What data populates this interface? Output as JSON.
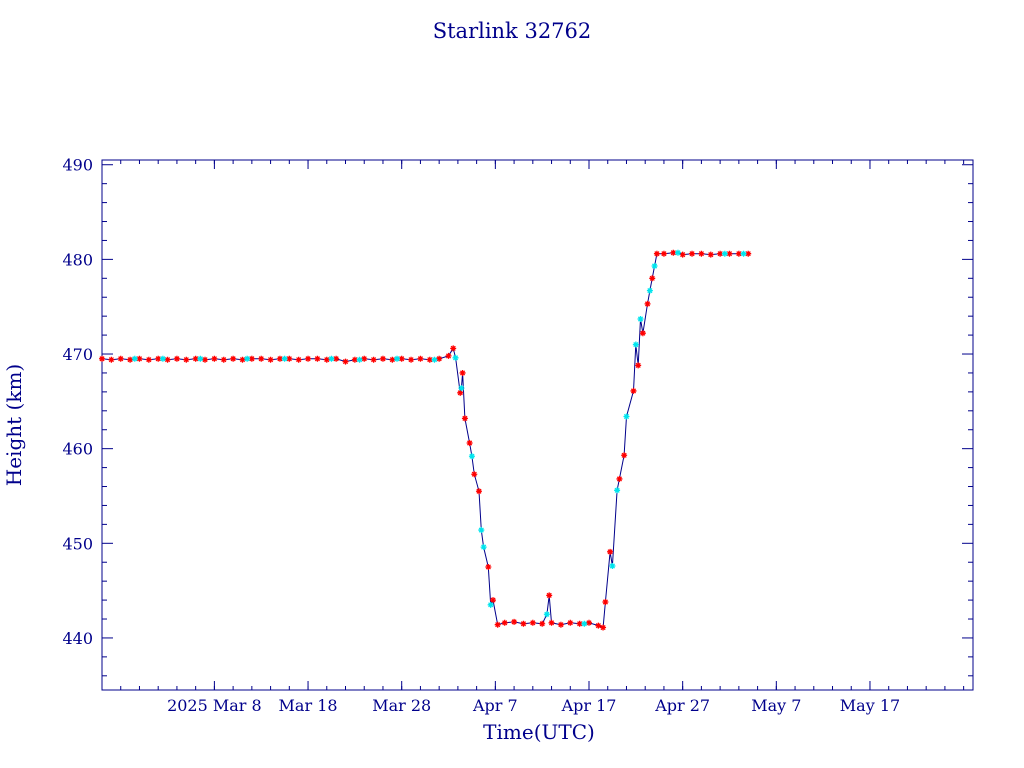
{
  "chart_data": {
    "type": "scatter",
    "title": "Starlink 32762",
    "xlabel": "Time(UTC)",
    "ylabel": "Height (km)",
    "xlim": [
      "2025-02-24",
      "2025-05-28"
    ],
    "ylim": [
      434.5,
      490.5
    ],
    "grid": false,
    "colors": {
      "axes": "#00008b",
      "line": "#00008b",
      "marker_primary": "#ff0000",
      "marker_secondary": "#00e5ee"
    },
    "x_ticks": [
      {
        "label": "2025 Mar  8",
        "date": "2025-03-08"
      },
      {
        "label": "Mar 18",
        "date": "2025-03-18"
      },
      {
        "label": "Mar 28",
        "date": "2025-03-28"
      },
      {
        "label": "Apr  7",
        "date": "2025-04-07"
      },
      {
        "label": "Apr 17",
        "date": "2025-04-17"
      },
      {
        "label": "Apr 27",
        "date": "2025-04-27"
      },
      {
        "label": "May  7",
        "date": "2025-05-07"
      },
      {
        "label": "May 17",
        "date": "2025-05-17"
      }
    ],
    "y_ticks": [
      440,
      450,
      460,
      470,
      480,
      490
    ],
    "series": [
      {
        "marker": "asterisk",
        "points": [
          [
            "2025-02-24T00:00",
            469.5
          ],
          [
            "2025-02-25T00:00",
            469.4
          ],
          [
            "2025-02-26T00:00",
            469.5
          ],
          [
            "2025-02-27T00:00",
            469.4
          ],
          [
            "2025-02-28T00:00",
            469.5
          ],
          [
            "2025-03-01T00:00",
            469.4
          ],
          [
            "2025-03-02T00:00",
            469.5
          ],
          [
            "2025-03-03T00:00",
            469.4
          ],
          [
            "2025-03-04T00:00",
            469.5
          ],
          [
            "2025-03-05T00:00",
            469.4
          ],
          [
            "2025-03-06T00:00",
            469.5
          ],
          [
            "2025-03-07T00:00",
            469.4
          ],
          [
            "2025-03-08T00:00",
            469.5
          ],
          [
            "2025-03-09T00:00",
            469.4
          ],
          [
            "2025-03-10T00:00",
            469.5
          ],
          [
            "2025-03-11T00:00",
            469.4
          ],
          [
            "2025-03-12T00:00",
            469.5
          ],
          [
            "2025-03-13T00:00",
            469.5
          ],
          [
            "2025-03-14T00:00",
            469.4
          ],
          [
            "2025-03-15T00:00",
            469.5
          ],
          [
            "2025-03-16T00:00",
            469.5
          ],
          [
            "2025-03-17T00:00",
            469.4
          ],
          [
            "2025-03-18T00:00",
            469.5
          ],
          [
            "2025-03-19T00:00",
            469.5
          ],
          [
            "2025-03-20T00:00",
            469.4
          ],
          [
            "2025-03-21T00:00",
            469.5
          ],
          [
            "2025-03-22T00:00",
            469.2
          ],
          [
            "2025-03-23T00:00",
            469.4
          ],
          [
            "2025-03-24T00:00",
            469.5
          ],
          [
            "2025-03-25T00:00",
            469.4
          ],
          [
            "2025-03-26T00:00",
            469.5
          ],
          [
            "2025-03-27T00:00",
            469.4
          ],
          [
            "2025-03-28T00:00",
            469.5
          ],
          [
            "2025-03-29T00:00",
            469.4
          ],
          [
            "2025-03-30T00:00",
            469.5
          ],
          [
            "2025-03-31T00:00",
            469.4
          ],
          [
            "2025-04-01T00:00",
            469.5
          ],
          [
            "2025-04-02T00:00",
            469.8
          ],
          [
            "2025-04-02T12:00",
            470.6
          ],
          [
            "2025-04-03T06:00",
            465.9
          ],
          [
            "2025-04-03T12:00",
            468.0
          ],
          [
            "2025-04-03T18:00",
            463.2
          ],
          [
            "2025-04-04T06:00",
            460.6
          ],
          [
            "2025-04-04T18:00",
            457.3
          ],
          [
            "2025-04-05T06:00",
            455.5
          ],
          [
            "2025-04-06T06:00",
            447.5
          ],
          [
            "2025-04-06T18:00",
            444.0
          ],
          [
            "2025-04-07T06:00",
            441.4
          ],
          [
            "2025-04-08T00:00",
            441.6
          ],
          [
            "2025-04-09T00:00",
            441.7
          ],
          [
            "2025-04-10T00:00",
            441.5
          ],
          [
            "2025-04-11T00:00",
            441.6
          ],
          [
            "2025-04-12T00:00",
            441.5
          ],
          [
            "2025-04-12T18:00",
            444.5
          ],
          [
            "2025-04-13T00:00",
            441.6
          ],
          [
            "2025-04-14T00:00",
            441.4
          ],
          [
            "2025-04-15T00:00",
            441.6
          ],
          [
            "2025-04-16T00:00",
            441.5
          ],
          [
            "2025-04-17T00:00",
            441.6
          ],
          [
            "2025-04-18T00:00",
            441.3
          ],
          [
            "2025-04-18T12:00",
            441.1
          ],
          [
            "2025-04-18T18:00",
            443.8
          ],
          [
            "2025-04-19T06:00",
            449.1
          ],
          [
            "2025-04-20T06:00",
            456.8
          ],
          [
            "2025-04-20T18:00",
            459.3
          ],
          [
            "2025-04-21T18:00",
            466.1
          ],
          [
            "2025-04-22T06:00",
            468.8
          ],
          [
            "2025-04-22T18:00",
            472.2
          ],
          [
            "2025-04-23T06:00",
            475.3
          ],
          [
            "2025-04-23T18:00",
            478.0
          ],
          [
            "2025-04-24T06:00",
            480.6
          ],
          [
            "2025-04-25T00:00",
            480.6
          ],
          [
            "2025-04-26T00:00",
            480.7
          ],
          [
            "2025-04-27T00:00",
            480.5
          ],
          [
            "2025-04-28T00:00",
            480.6
          ],
          [
            "2025-04-29T00:00",
            480.6
          ],
          [
            "2025-04-30T00:00",
            480.5
          ],
          [
            "2025-05-01T00:00",
            480.6
          ],
          [
            "2025-05-02T00:00",
            480.6
          ],
          [
            "2025-05-03T00:00",
            480.6
          ],
          [
            "2025-05-04T00:00",
            480.6
          ]
        ]
      },
      {
        "marker": "asterisk",
        "points": [
          [
            "2025-02-27T12:00",
            469.5
          ],
          [
            "2025-03-02T12:00",
            469.5
          ],
          [
            "2025-03-06T12:00",
            469.5
          ],
          [
            "2025-03-11T12:00",
            469.5
          ],
          [
            "2025-03-15T12:00",
            469.5
          ],
          [
            "2025-03-20T12:00",
            469.5
          ],
          [
            "2025-03-23T12:00",
            469.4
          ],
          [
            "2025-03-27T12:00",
            469.5
          ],
          [
            "2025-03-31T12:00",
            469.4
          ],
          [
            "2025-04-02T18:00",
            469.6
          ],
          [
            "2025-04-03T09:00",
            466.4
          ],
          [
            "2025-04-04T12:00",
            459.2
          ],
          [
            "2025-04-05T12:00",
            451.4
          ],
          [
            "2025-04-05T18:00",
            449.6
          ],
          [
            "2025-04-06T12:00",
            443.5
          ],
          [
            "2025-04-12T12:00",
            442.5
          ],
          [
            "2025-04-16T12:00",
            441.5
          ],
          [
            "2025-04-19T12:00",
            447.6
          ],
          [
            "2025-04-20T00:00",
            455.6
          ],
          [
            "2025-04-21T00:00",
            463.4
          ],
          [
            "2025-04-22T00:00",
            471.0
          ],
          [
            "2025-04-22T12:00",
            473.7
          ],
          [
            "2025-04-23T12:00",
            476.7
          ],
          [
            "2025-04-24T00:00",
            479.3
          ],
          [
            "2025-04-26T12:00",
            480.7
          ],
          [
            "2025-05-01T12:00",
            480.6
          ],
          [
            "2025-05-03T12:00",
            480.6
          ]
        ]
      }
    ]
  }
}
